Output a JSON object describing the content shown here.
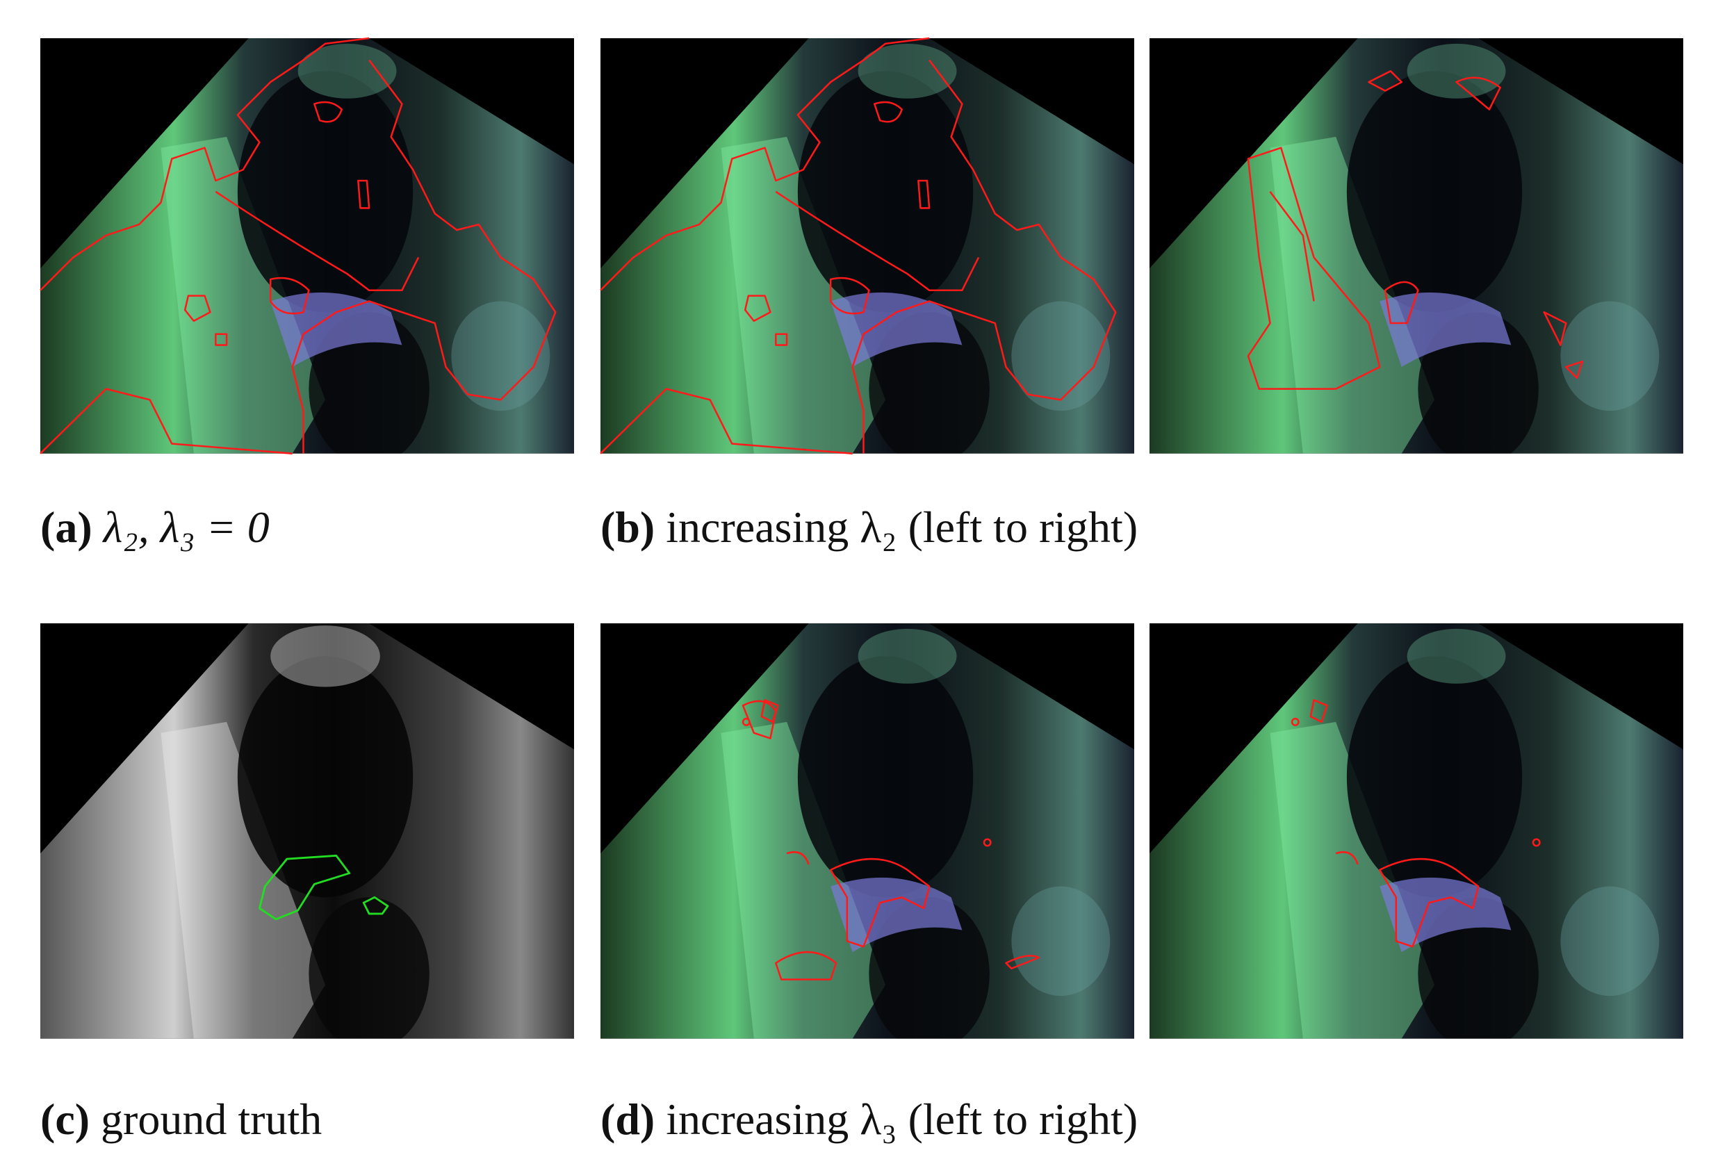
{
  "figure": {
    "captions": [
      {
        "label": "(a)",
        "text": "λ₂, λ₃ = 0"
      },
      {
        "label": "(b)",
        "text": "increasing λ₂ (left to right)"
      },
      {
        "label": "(c)",
        "text": "ground truth"
      },
      {
        "label": "(d)",
        "text": "increasing λ₃ (left to right)"
      }
    ]
  }
}
